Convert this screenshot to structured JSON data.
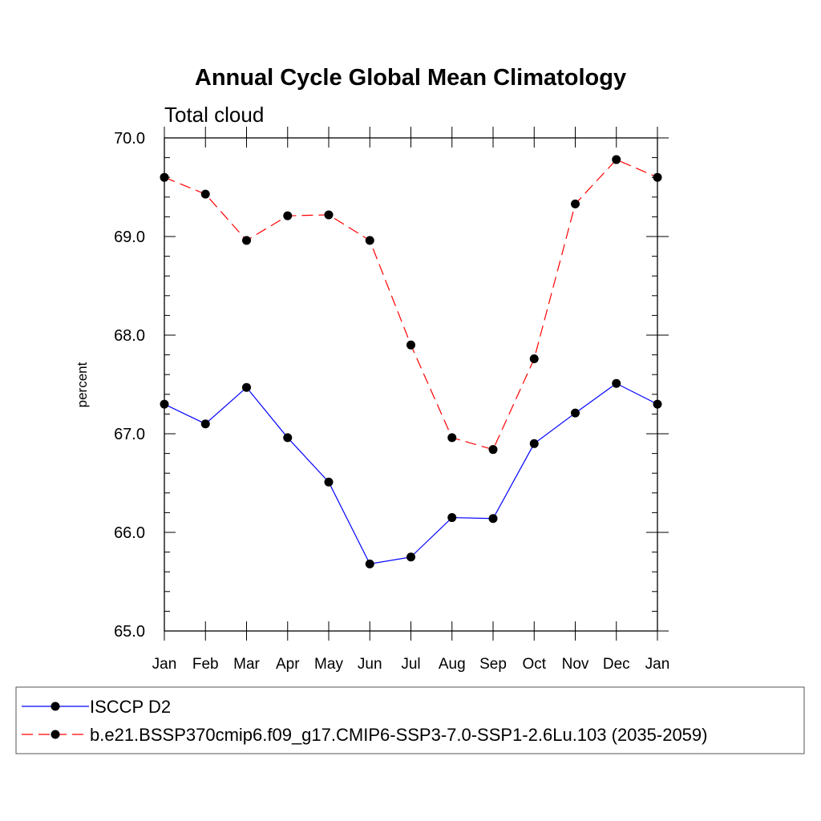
{
  "chart_data": {
    "type": "line",
    "title": "Annual Cycle Global Mean Climatology",
    "subtitle": "Total cloud",
    "xlabel": "",
    "ylabel": "percent",
    "categories": [
      "Jan",
      "Feb",
      "Mar",
      "Apr",
      "May",
      "Jun",
      "Jul",
      "Aug",
      "Sep",
      "Oct",
      "Nov",
      "Dec",
      "Jan"
    ],
    "ylim": [
      65.0,
      70.0
    ],
    "yticks": [
      "65.0",
      "66.0",
      "67.0",
      "68.0",
      "69.0",
      "70.0"
    ],
    "grid": false,
    "legend_position": "bottom",
    "series": [
      {
        "name": "ISCCP D2",
        "color": "#0000ff",
        "dash": "solid",
        "marker": "circle",
        "values": [
          67.3,
          67.1,
          67.47,
          66.96,
          66.51,
          65.68,
          65.75,
          66.15,
          66.14,
          66.9,
          67.21,
          67.51,
          67.3
        ]
      },
      {
        "name": "b.e21.BSSP370cmip6.f09_g17.CMIP6-SSP3-7.0-SSP1-2.6Lu.103 (2035-2059)",
        "color": "#ff0000",
        "dash": "dashed",
        "marker": "circle",
        "values": [
          69.6,
          69.43,
          68.96,
          69.21,
          69.22,
          68.96,
          67.9,
          66.96,
          66.84,
          67.76,
          69.33,
          69.78,
          69.6
        ]
      }
    ]
  }
}
